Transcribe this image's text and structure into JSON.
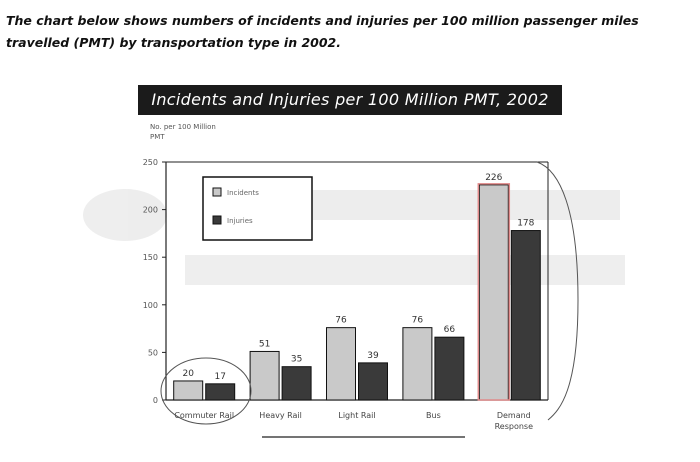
{
  "caption": "The chart below shows numbers of incidents and injuries per 100 million passenger miles travelled (PMT) by transportation type in 2002.",
  "chart_data": {
    "type": "bar",
    "title": "Incidents and Injuries per 100 Million PMT, 2002",
    "ylabel": "No. per 100 Million PMT",
    "ylim": [
      0,
      250
    ],
    "yticks": [
      0,
      50,
      100,
      150,
      200,
      250
    ],
    "categories": [
      "Commuter Rail",
      "Heavy Rail",
      "Light Rail",
      "Bus",
      "Demand Response"
    ],
    "series": [
      {
        "name": "Incidents",
        "values": [
          20,
          51,
          76,
          76,
          226
        ],
        "labels": [
          "20",
          "51",
          "76",
          "76",
          "226"
        ],
        "color": "#c9c9c9"
      },
      {
        "name": "Injuries",
        "values": [
          17,
          35,
          39,
          66,
          178
        ],
        "labels": [
          "17",
          "35",
          "39",
          "66",
          "178"
        ],
        "color": "#3a3a3a"
      }
    ],
    "legend_position": "top-left",
    "grid": false
  }
}
